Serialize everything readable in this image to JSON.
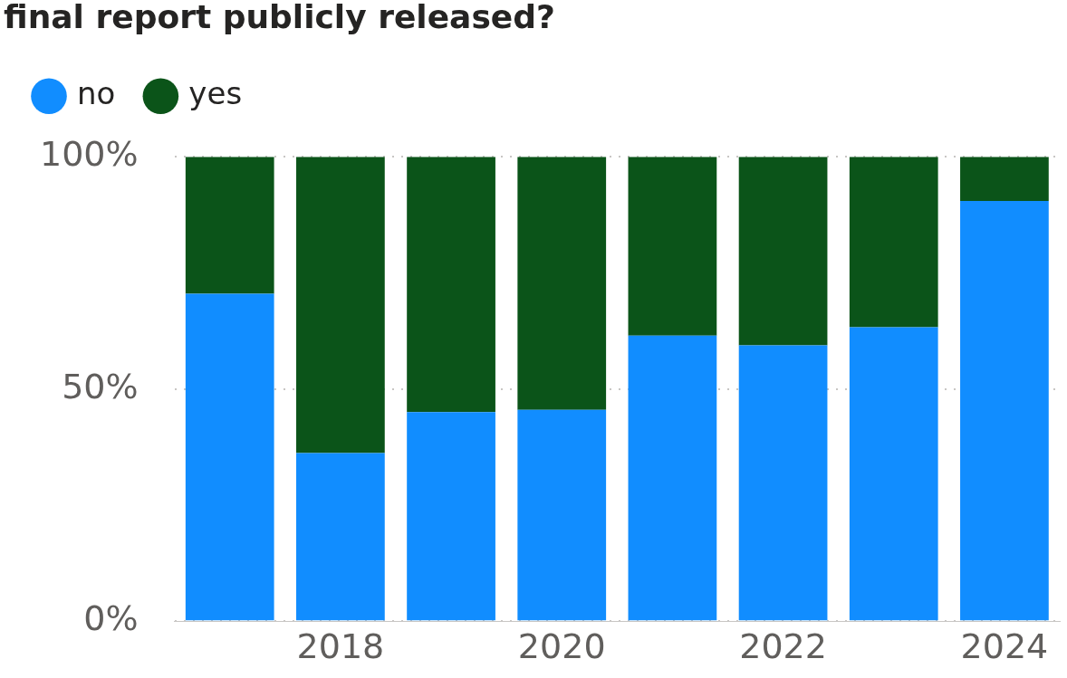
{
  "chart_data": {
    "type": "bar",
    "title": "final report publicly released?",
    "stacked": true,
    "categories": [
      null,
      "2018",
      null,
      "2020",
      null,
      "2022",
      null,
      "2024"
    ],
    "series": [
      {
        "name": "no",
        "color": "#118dff",
        "values": [
          70.5,
          36.2,
          45,
          45.5,
          61.5,
          59.4,
          63.3,
          90.5
        ]
      },
      {
        "name": "yes",
        "color": "#0b5419",
        "values": [
          29.5,
          63.8,
          55,
          54.5,
          38.5,
          40.6,
          36.7,
          9.5
        ]
      }
    ],
    "ylim": [
      0,
      100
    ],
    "yticks": [
      {
        "value": 0,
        "label": "0%"
      },
      {
        "value": 50,
        "label": "50%"
      },
      {
        "value": 100,
        "label": "100%"
      }
    ],
    "grid": "y",
    "legend": "top left"
  }
}
